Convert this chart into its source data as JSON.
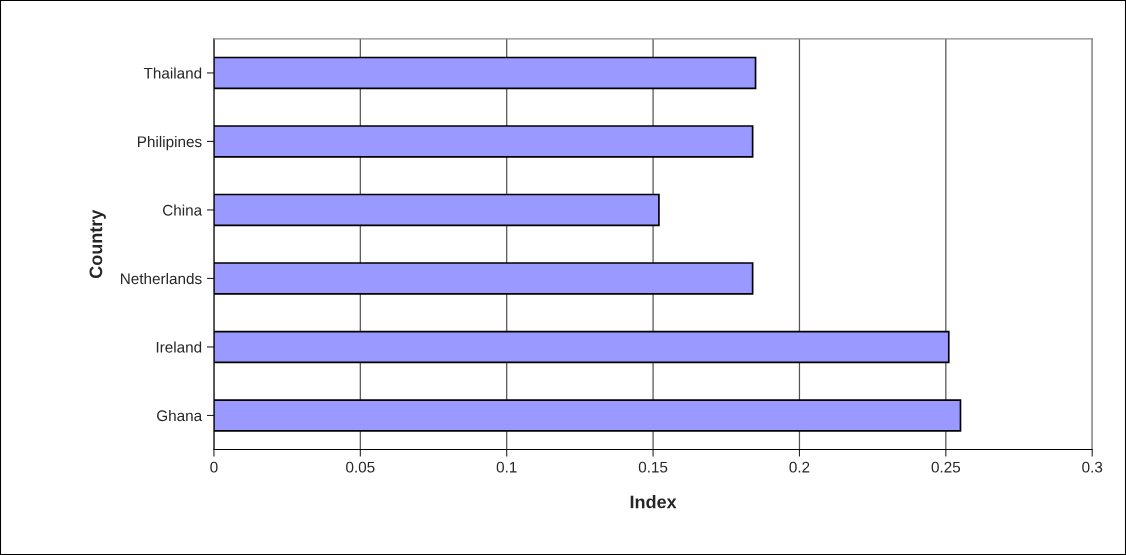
{
  "chart_data": {
    "type": "bar",
    "orientation": "horizontal",
    "categories": [
      "Thailand",
      "Philipines",
      "China",
      "Netherlands",
      "Ireland",
      "Ghana"
    ],
    "values": [
      0.185,
      0.184,
      0.152,
      0.184,
      0.251,
      0.255
    ],
    "color": "#9999ff",
    "xlabel": "Index",
    "ylabel": "Country",
    "xlim": [
      0,
      0.3
    ],
    "xticks": [
      0,
      0.05,
      0.1,
      0.15,
      0.2,
      0.25,
      0.3
    ],
    "grid": "x"
  }
}
